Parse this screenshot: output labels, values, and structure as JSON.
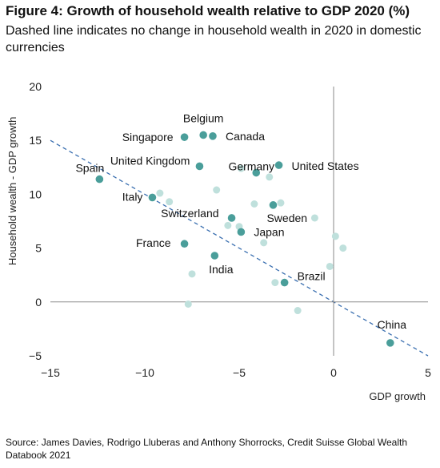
{
  "header": {
    "title": "Figure 4: Growth of household wealth relative to GDP 2020 (%)",
    "subtitle": "Dashed line indicates no change in household wealth in 2020 in domestic currencies"
  },
  "footer": {
    "source": "Source: James Davies, Rodrigo Lluberas and Anthony Shorrocks, Credit Suisse Global Wealth Databook 2021"
  },
  "chart_data": {
    "type": "scatter",
    "title": "Figure 4: Growth of household wealth relative to GDP 2020 (%)",
    "xlabel": "GDP growth",
    "ylabel": "Household wealth - GDP growth",
    "xlim": [
      -15,
      5
    ],
    "ylim": [
      -5,
      20
    ],
    "xticks": [
      -15,
      -10,
      -5,
      0,
      5
    ],
    "yticks": [
      -5,
      0,
      5,
      10,
      15,
      20
    ],
    "grid": false,
    "colors": {
      "highlight": "#4a9e9a",
      "other": "#bfe0dc",
      "reference_line": "#3a6fb0",
      "axis": "#8a8a8a"
    },
    "reference_line": {
      "style": "dashed",
      "from": [
        -15,
        15
      ],
      "to": [
        5,
        -5
      ]
    },
    "labeled_points": [
      {
        "label": "Belgium",
        "x": -6.9,
        "y": 15.5
      },
      {
        "label": "Canada",
        "x": -6.4,
        "y": 15.4
      },
      {
        "label": "Singapore",
        "x": -7.9,
        "y": 15.3
      },
      {
        "label": "United Kingdom",
        "x": -7.1,
        "y": 12.6
      },
      {
        "label": "United States",
        "x": -2.9,
        "y": 12.7
      },
      {
        "label": "Spain",
        "x": -12.4,
        "y": 11.4
      },
      {
        "label": "Italy",
        "x": -9.6,
        "y": 9.7
      },
      {
        "label": "Germany",
        "x": -4.1,
        "y": 12.0
      },
      {
        "label": "Switzerland",
        "x": -5.4,
        "y": 7.8
      },
      {
        "label": "Sweden",
        "x": -3.2,
        "y": 9.0
      },
      {
        "label": "Japan",
        "x": -4.9,
        "y": 6.5
      },
      {
        "label": "France",
        "x": -7.9,
        "y": 5.4
      },
      {
        "label": "India",
        "x": -6.3,
        "y": 4.3
      },
      {
        "label": "Brazil",
        "x": -2.6,
        "y": 1.8
      },
      {
        "label": "China",
        "x": 3.0,
        "y": -3.8
      }
    ],
    "other_points": [
      {
        "x": -9.2,
        "y": 10.1
      },
      {
        "x": -8.7,
        "y": 9.3
      },
      {
        "x": -6.2,
        "y": 10.4
      },
      {
        "x": -4.9,
        "y": 12.4
      },
      {
        "x": -3.4,
        "y": 11.6
      },
      {
        "x": -4.2,
        "y": 9.1
      },
      {
        "x": -2.8,
        "y": 9.2
      },
      {
        "x": -1.0,
        "y": 7.8
      },
      {
        "x": -5.6,
        "y": 7.1
      },
      {
        "x": -5.0,
        "y": 7.0
      },
      {
        "x": -3.7,
        "y": 5.5
      },
      {
        "x": 0.1,
        "y": 6.1
      },
      {
        "x": 0.5,
        "y": 5.0
      },
      {
        "x": -0.2,
        "y": 3.3
      },
      {
        "x": -7.5,
        "y": 2.6
      },
      {
        "x": -3.1,
        "y": 1.8
      },
      {
        "x": -7.7,
        "y": -0.2
      },
      {
        "x": -1.9,
        "y": -0.8
      }
    ]
  }
}
